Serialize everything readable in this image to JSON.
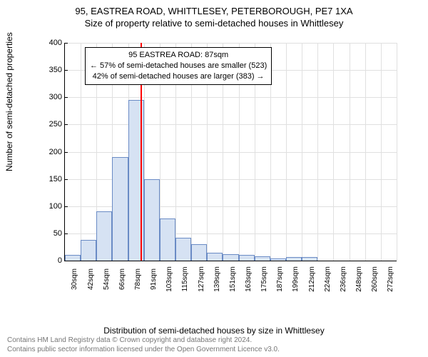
{
  "title_line1": "95, EASTREA ROAD, WHITTLESEY, PETERBOROUGH, PE7 1XA",
  "title_line2": "Size of property relative to semi-detached houses in Whittlesey",
  "y_axis_label": "Number of semi-detached properties",
  "x_axis_label": "Distribution of semi-detached houses by size in Whittlesey",
  "footer_line1": "Contains HM Land Registry data © Crown copyright and database right 2024.",
  "footer_line2": "Contains public sector information licensed under the Open Government Licence v3.0.",
  "callout": {
    "line1": "95 EASTREA ROAD: 87sqm",
    "line2": "← 57% of semi-detached houses are smaller (523)",
    "line3": "42% of semi-detached houses are larger (383) →"
  },
  "chart": {
    "type": "histogram",
    "ylim": [
      0,
      400
    ],
    "ytick_step": 50,
    "bar_fill": "#d6e2f3",
    "bar_stroke": "#6a8bc5",
    "grid_color": "#e0e0e0",
    "marker_color": "#ff0000",
    "marker_x_position": 87,
    "x_range": [
      30,
      280
    ],
    "categories": [
      "30sqm",
      "42sqm",
      "54sqm",
      "66sqm",
      "78sqm",
      "91sqm",
      "103sqm",
      "115sqm",
      "127sqm",
      "139sqm",
      "151sqm",
      "163sqm",
      "175sqm",
      "187sqm",
      "199sqm",
      "212sqm",
      "224sqm",
      "236sqm",
      "248sqm",
      "260sqm",
      "272sqm"
    ],
    "values": [
      10,
      38,
      90,
      190,
      295,
      150,
      78,
      42,
      30,
      14,
      12,
      10,
      8,
      4,
      6,
      6,
      0,
      0,
      0,
      0,
      0
    ]
  },
  "styling": {
    "title_fontsize": 13,
    "label_fontsize": 12,
    "tick_fontsize": 11,
    "footer_fontsize": 10,
    "footer_color": "#777777",
    "background_color": "#ffffff"
  }
}
